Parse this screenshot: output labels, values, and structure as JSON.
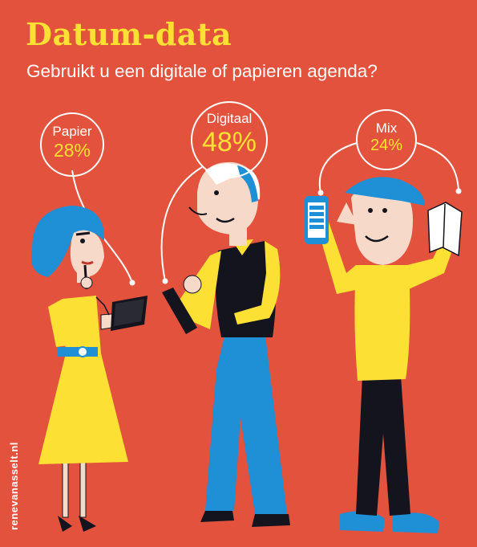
{
  "header": {
    "title": "Datum-data",
    "subtitle": "Gebruikt u een digitale of papieren agenda?"
  },
  "credit": "renevanasselt.nl",
  "colors": {
    "background": "#e2523d",
    "accent_yellow": "#fde034",
    "text_white": "#ffffff",
    "blue": "#1f8fd6",
    "dark": "#14141e"
  },
  "chart_data": {
    "type": "pie",
    "title": "Datum-data",
    "subtitle": "Gebruikt u een digitale of papieren agenda?",
    "categories": [
      "Papier",
      "Digitaal",
      "Mix"
    ],
    "values": [
      28,
      48,
      24
    ],
    "labels": [
      "28%",
      "48%",
      "24%"
    ],
    "unit": "%"
  }
}
